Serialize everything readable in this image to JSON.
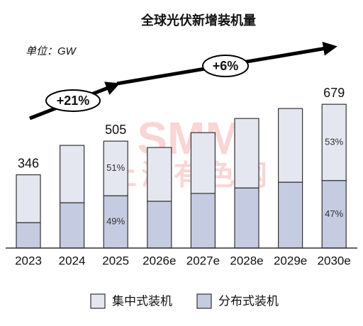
{
  "chart_data": {
    "type": "bar",
    "stacked": true,
    "title": "全球光伏新增装机量",
    "unit_label": "单位：GW",
    "watermark": [
      "SMM",
      "上海有色网"
    ],
    "categories": [
      "2023",
      "2024",
      "2025",
      "2026e",
      "2027e",
      "2028e",
      "2029e",
      "2030e"
    ],
    "series": [
      {
        "name": "分布式装机",
        "color": "#c5cbe0",
        "values": [
          120,
          214,
          247,
          221,
          258,
          284,
          311,
          319
        ],
        "share_labels": [
          null,
          null,
          "49%",
          null,
          null,
          null,
          null,
          "47%"
        ]
      },
      {
        "name": "集中式装机",
        "color": "#e4e6f0",
        "values": [
          226,
          271,
          258,
          254,
          287,
          328,
          348,
          360
        ],
        "share_labels": [
          null,
          null,
          "51%",
          null,
          null,
          null,
          null,
          "53%"
        ]
      }
    ],
    "totals": [
      346,
      null,
      505,
      null,
      null,
      null,
      null,
      679
    ],
    "annotations": [
      "+21%",
      "+6%"
    ],
    "ylim": [
      0,
      800
    ],
    "legend": "bottom"
  }
}
